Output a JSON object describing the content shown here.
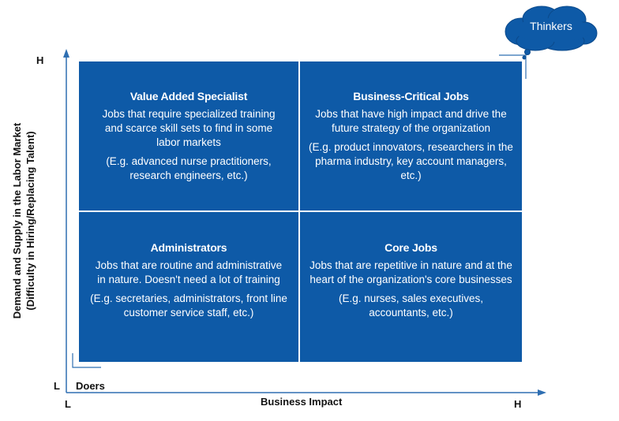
{
  "quadrants": {
    "top_left": {
      "title": "Value Added Specialist",
      "description": "Jobs that require specialized training and scarce skill sets to find in some labor markets",
      "examples": "(E.g. advanced nurse practitioners, research engineers, etc.)"
    },
    "top_right": {
      "title": "Business-Critical Jobs",
      "description": "Jobs that have high impact and drive the future strategy of the organization",
      "examples": "(E.g. product innovators, researchers in the pharma industry, key account managers, etc.)"
    },
    "bottom_left": {
      "title": "Administrators",
      "description": "Jobs that are routine and administrative in nature. Doesn't need a lot of training",
      "examples": "(E.g. secretaries, administrators, front line customer service staff, etc.)"
    },
    "bottom_right": {
      "title": "Core Jobs",
      "description": "Jobs that are repetitive in nature and at the heart of the organization's core businesses",
      "examples": "(E.g. nurses, sales executives, accountants, etc.)"
    }
  },
  "y_axis": {
    "label_line1": "Demand and Supply in the Labor Market",
    "label_line2": "(Difficulty in Hiring/Replacing Talent)",
    "high": "H",
    "low": "L"
  },
  "x_axis": {
    "label": "Business Impact",
    "high": "H",
    "low": "L"
  },
  "callouts": {
    "thinkers": "Thinkers",
    "doers": "Doers"
  },
  "colors": {
    "quadrant_fill": "#0e5aa7",
    "axis": "#2f6fb2",
    "cloud": "#0e5aa7"
  }
}
